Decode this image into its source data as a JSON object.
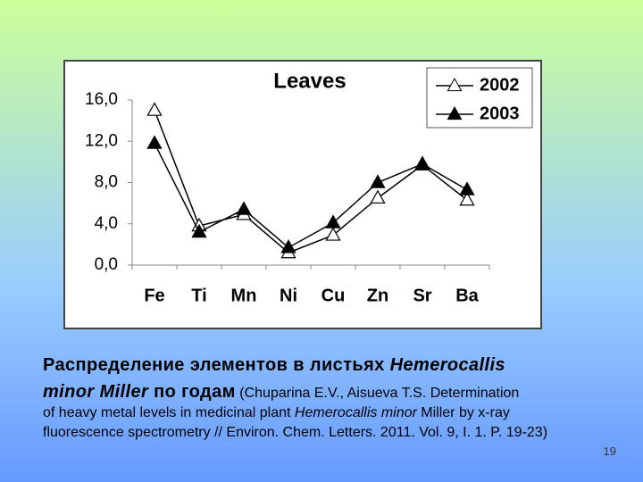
{
  "chart_data": {
    "type": "line",
    "title": "Leaves",
    "categories": [
      "Fe",
      "Ti",
      "Mn",
      "Ni",
      "Cu",
      "Zn",
      "Sr",
      "Ba"
    ],
    "series": [
      {
        "name": "2002",
        "color": "#000000",
        "marker": "open-triangle",
        "values": [
          15.0,
          3.8,
          4.9,
          1.2,
          2.9,
          6.5,
          9.7,
          6.3
        ]
      },
      {
        "name": "2003",
        "color": "#000000",
        "marker": "filled-triangle",
        "values": [
          11.8,
          3.2,
          5.4,
          1.7,
          4.1,
          8.0,
          9.8,
          7.3
        ]
      }
    ],
    "ylim": [
      0,
      16
    ],
    "yticks": [
      {
        "value": 0,
        "label": "0,0"
      },
      {
        "value": 4,
        "label": "4,0"
      },
      {
        "value": 8,
        "label": "8,0"
      },
      {
        "value": 12,
        "label": "12,0"
      },
      {
        "value": 16,
        "label": "16,0"
      }
    ],
    "grid": false,
    "legend": "top-right"
  },
  "caption": {
    "lines": [
      [
        {
          "text": "Распределение элементов в листьях ",
          "style": "bold"
        },
        {
          "text": "Hemerocallis",
          "style": "bold-italic"
        }
      ],
      [
        {
          "text": "minor Miller",
          "style": "bold-italic"
        },
        {
          "text": " по годам",
          "style": "bold"
        },
        {
          "text": " (Chuparina E.V., Aisueva T.S. Determination",
          "style": "normal"
        }
      ],
      [
        {
          "text": "of heavy metal levels in medicinal plant ",
          "style": "normal"
        },
        {
          "text": "Hemerocallis minor",
          "style": "italic"
        },
        {
          "text": " Miller by x-ray",
          "style": "normal"
        }
      ],
      [
        {
          "text": "fluorescence spectrometry // Environ. Chem. Letters. 2011. Vol. 9, I. 1. P. 19-23)",
          "style": "normal"
        }
      ]
    ]
  },
  "slide_number": 19
}
